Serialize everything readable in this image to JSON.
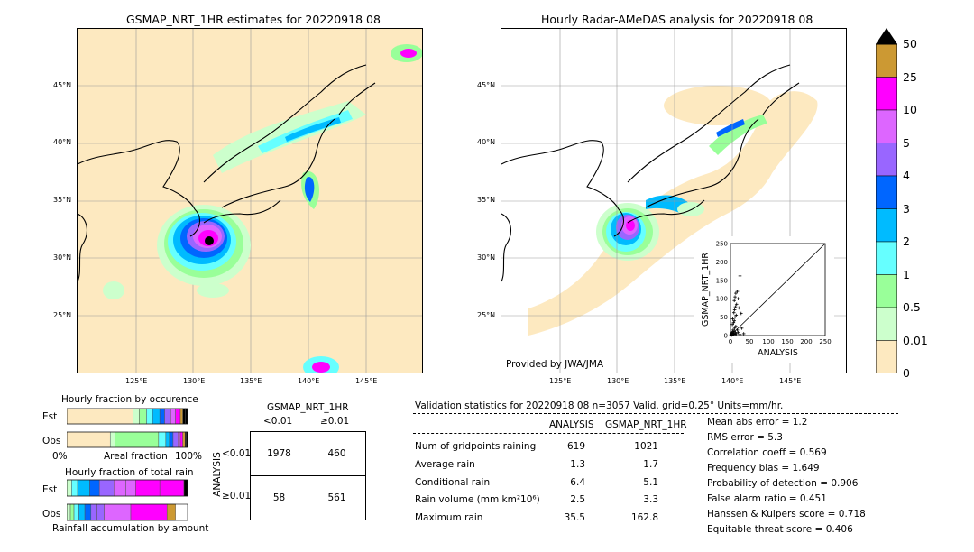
{
  "left_map": {
    "title": "GSMAP_NRT_1HR estimates for 20220918 08",
    "lat_labels": [
      "45°N",
      "40°N",
      "35°N",
      "30°N",
      "25°N"
    ],
    "lon_labels": [
      "125°E",
      "130°E",
      "135°E",
      "140°E",
      "145°E"
    ]
  },
  "right_map": {
    "title": "Hourly Radar-AMeDAS analysis for 20220918 08",
    "lat_labels": [
      "45°N",
      "40°N",
      "35°N",
      "30°N",
      "25°N"
    ],
    "lon_labels": [
      "125°E",
      "130°E",
      "135°E",
      "140°E",
      "145°E"
    ],
    "credit": "Provided by JWA/JMA"
  },
  "colorbar": {
    "labels": [
      "50",
      "25",
      "10",
      "5",
      "4",
      "3",
      "2",
      "1",
      "0.5",
      "0.01",
      "0"
    ],
    "colors": [
      "#cc9933",
      "#ff00ff",
      "#dd66ff",
      "#9966ff",
      "#0066ff",
      "#00bbff",
      "#66ffff",
      "#99ff99",
      "#ccffcc",
      "#fde9c0"
    ],
    "over_color": "#000000"
  },
  "chart_data": [
    {
      "type": "scatter",
      "title": "",
      "xlabel": "ANALYSIS",
      "ylabel": "GSMAP_NRT_1HR",
      "xlim": [
        0,
        250
      ],
      "ylim": [
        0,
        250
      ],
      "xticks": [
        "0",
        "50",
        "100",
        "150",
        "200",
        "250"
      ],
      "yticks": [
        "0",
        "50",
        "100",
        "150",
        "200",
        "250"
      ],
      "diagonal": true,
      "points": [
        [
          2,
          3
        ],
        [
          3,
          5
        ],
        [
          4,
          8
        ],
        [
          5,
          2
        ],
        [
          6,
          10
        ],
        [
          7,
          15
        ],
        [
          8,
          4
        ],
        [
          9,
          6
        ],
        [
          10,
          12
        ],
        [
          11,
          20
        ],
        [
          12,
          3
        ],
        [
          13,
          8
        ],
        [
          14,
          25
        ],
        [
          5,
          30
        ],
        [
          8,
          35
        ],
        [
          10,
          40
        ],
        [
          6,
          45
        ],
        [
          12,
          50
        ],
        [
          15,
          55
        ],
        [
          9,
          62
        ],
        [
          11,
          70
        ],
        [
          13,
          78
        ],
        [
          16,
          85
        ],
        [
          10,
          95
        ],
        [
          12,
          105
        ],
        [
          14,
          115
        ],
        [
          18,
          120
        ],
        [
          20,
          100
        ],
        [
          22,
          75
        ],
        [
          25,
          162
        ],
        [
          28,
          60
        ],
        [
          30,
          20
        ],
        [
          35,
          5
        ],
        [
          20,
          8
        ],
        [
          25,
          3
        ],
        [
          18,
          15
        ],
        [
          15,
          5
        ],
        [
          3,
          1
        ],
        [
          1,
          2
        ],
        [
          4,
          4
        ]
      ]
    },
    {
      "type": "bar",
      "title": "Hourly fraction by occurence",
      "categories": [
        "Est",
        "Obs"
      ],
      "xtick_labels": [
        "0%",
        "Areal fraction",
        "100%"
      ]
    },
    {
      "type": "bar",
      "title": "Hourly fraction of total rain",
      "categories": [
        "Est",
        "Obs"
      ],
      "xlabel": "Rainfall accumulation by amount"
    },
    {
      "type": "table",
      "title": "GSMAP_NRT_1HR",
      "col_labels": [
        "<0.01",
        "≥0.01"
      ],
      "row_axis_label": "ANALYSIS",
      "row_labels": [
        "<0.01",
        "≥0.01"
      ],
      "cells": [
        [
          "1978",
          "460"
        ],
        [
          "58",
          "561"
        ]
      ]
    }
  ],
  "occurrence": {
    "est": [
      0.55,
      0.05,
      0.06,
      0.05,
      0.06,
      0.04,
      0.05,
      0.04,
      0.04,
      0.02,
      0.02,
      0.02
    ],
    "obs": [
      0.36,
      0.04,
      0.36,
      0.06,
      0.03,
      0.03,
      0.04,
      0.02,
      0.02,
      0.02,
      0.01,
      0.01
    ]
  },
  "total_rain": {
    "est": [
      0.04,
      0.05,
      0.1,
      0.08,
      0.12,
      0.1,
      0.08,
      0.2,
      0.2,
      0.03
    ],
    "obs": [
      0.03,
      0.03,
      0.04,
      0.05,
      0.05,
      0.05,
      0.06,
      0.22,
      0.3,
      0.07
    ]
  },
  "validation": {
    "header": "Validation statistics for 20220918 08  n=3057 Valid. grid=0.25° Units=mm/hr.",
    "col_analysis": "ANALYSIS",
    "col_gsmap": "GSMAP_NRT_1HR",
    "rows": [
      {
        "label": "Num of gridpoints raining",
        "analysis": "619",
        "gsmap": "1021"
      },
      {
        "label": "Average rain",
        "analysis": "1.3",
        "gsmap": "1.7"
      },
      {
        "label": "Conditional rain",
        "analysis": "6.4",
        "gsmap": "5.1"
      },
      {
        "label": "Rain volume (mm km²10⁶)",
        "analysis": "2.5",
        "gsmap": "3.3"
      },
      {
        "label": "Maximum rain",
        "analysis": "35.5",
        "gsmap": "162.8"
      }
    ],
    "scores": [
      "Mean abs error =    1.2",
      "RMS error =    5.3",
      "Correlation coeff =  0.569",
      "Frequency bias =  1.649",
      "Probability of detection =  0.906",
      "False alarm ratio =  0.451",
      "Hanssen & Kuipers score =  0.718",
      "Equitable threat score =  0.406"
    ]
  }
}
